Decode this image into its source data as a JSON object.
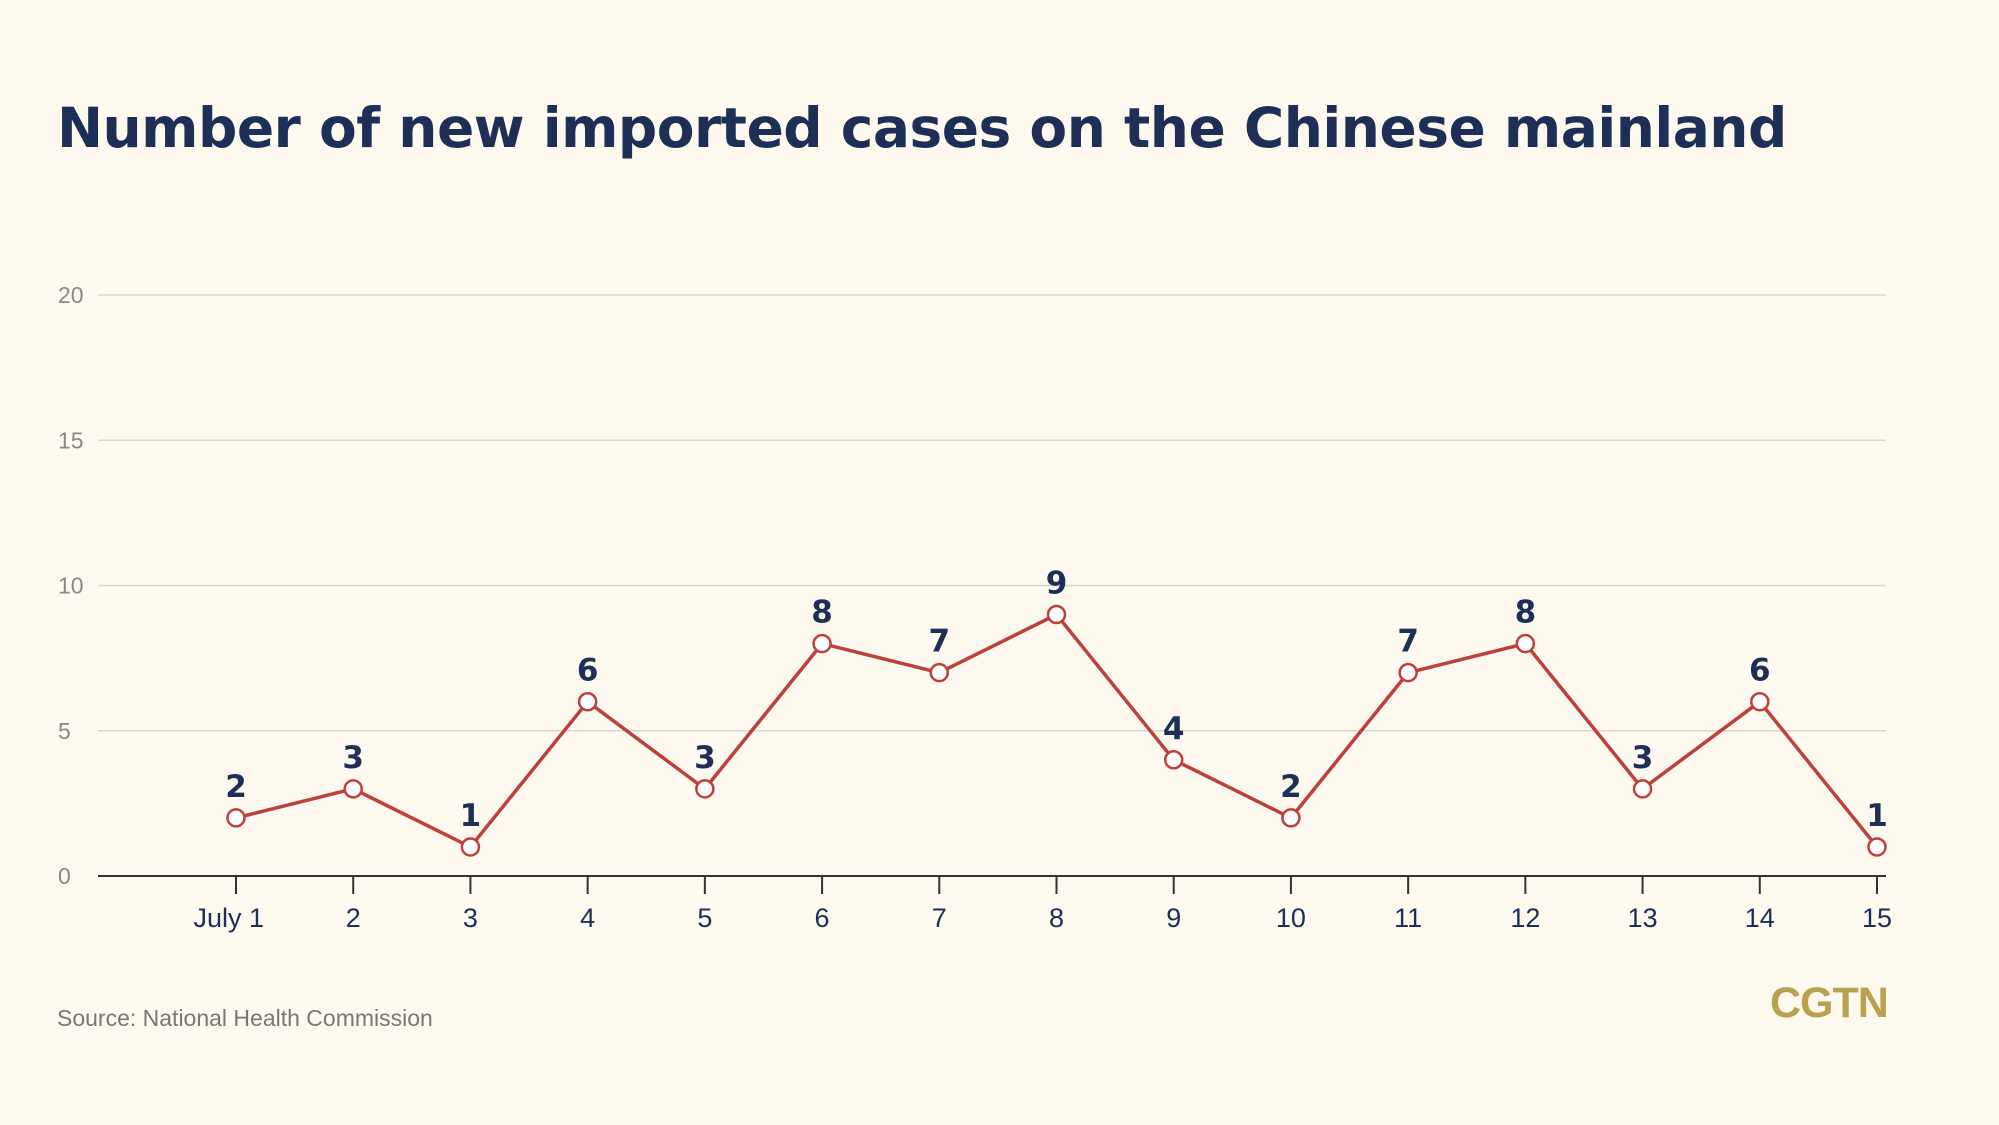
{
  "title": "Number of new imported cases on the Chinese mainland",
  "source": "Source: National Health Commission",
  "logo": "CGTN",
  "colors": {
    "background": "#fdf9ef",
    "title": "#1d2f57",
    "line": "#bf3f3a",
    "marker_fill": "#ffffff",
    "grid": "#d6d6cf",
    "axis": "#333333",
    "tick_label": "#1d2f57",
    "y_label": "#888888",
    "data_label": "#1d2f57",
    "logo": "#b9a14e"
  },
  "chart_data": {
    "type": "line",
    "title": "Number of new imported cases on the Chinese mainland",
    "xlabel": "",
    "ylabel": "",
    "categories": [
      "July 1",
      "2",
      "3",
      "4",
      "5",
      "6",
      "7",
      "8",
      "9",
      "10",
      "11",
      "12",
      "13",
      "14",
      "15"
    ],
    "values": [
      2,
      3,
      1,
      6,
      3,
      8,
      7,
      9,
      4,
      2,
      7,
      8,
      3,
      6,
      1
    ],
    "ylim": [
      0,
      20
    ],
    "yticks": [
      0,
      5,
      10,
      15,
      20
    ],
    "grid": true,
    "legend": "none",
    "data_labels": true,
    "markers": "open-circle"
  }
}
